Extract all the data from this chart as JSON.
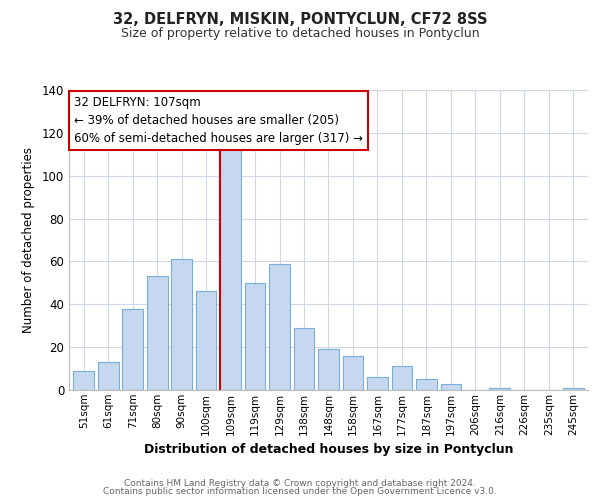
{
  "title": "32, DELFRYN, MISKIN, PONTYCLUN, CF72 8SS",
  "subtitle": "Size of property relative to detached houses in Pontyclun",
  "xlabel": "Distribution of detached houses by size in Pontyclun",
  "ylabel": "Number of detached properties",
  "bar_labels": [
    "51sqm",
    "61sqm",
    "71sqm",
    "80sqm",
    "90sqm",
    "100sqm",
    "109sqm",
    "119sqm",
    "129sqm",
    "138sqm",
    "148sqm",
    "158sqm",
    "167sqm",
    "177sqm",
    "187sqm",
    "197sqm",
    "206sqm",
    "216sqm",
    "226sqm",
    "235sqm",
    "245sqm"
  ],
  "bar_values": [
    9,
    13,
    38,
    53,
    61,
    46,
    113,
    50,
    59,
    29,
    19,
    16,
    6,
    11,
    5,
    3,
    0,
    1,
    0,
    0,
    1
  ],
  "bar_color": "#c5d8f0",
  "bar_edge_color": "#7aaed6",
  "highlight_index": 6,
  "highlight_line_color": "#cc0000",
  "ylim": [
    0,
    140
  ],
  "yticks": [
    0,
    20,
    40,
    60,
    80,
    100,
    120,
    140
  ],
  "annotation_title": "32 DELFRYN: 107sqm",
  "annotation_line1": "← 39% of detached houses are smaller (205)",
  "annotation_line2": "60% of semi-detached houses are larger (317) →",
  "annotation_box_color": "#ffffff",
  "annotation_box_edge": "#cc0000",
  "footer1": "Contains HM Land Registry data © Crown copyright and database right 2024.",
  "footer2": "Contains public sector information licensed under the Open Government Licence v3.0.",
  "background_color": "#ffffff",
  "grid_color": "#d0d8e8"
}
